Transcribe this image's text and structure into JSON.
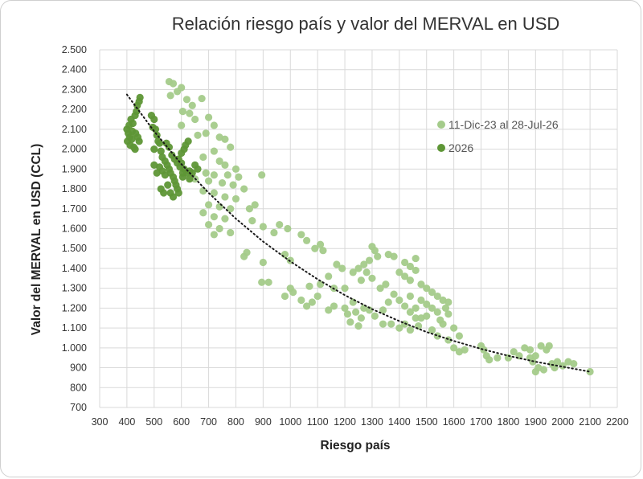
{
  "chart_data": {
    "type": "scatter",
    "title": "Relación riesgo país y valor del MERVAL en USD",
    "xlabel": "Riesgo país",
    "ylabel": "Valor del MERVAL en USD (CCL)",
    "xlim": [
      300,
      2200
    ],
    "ylim": [
      700,
      2500
    ],
    "x_ticks": [
      300,
      400,
      500,
      600,
      700,
      800,
      900,
      1000,
      1100,
      1200,
      1300,
      1400,
      1500,
      1600,
      1700,
      1800,
      1900,
      2000,
      2100,
      2200
    ],
    "y_ticks": [
      700,
      800,
      900,
      1000,
      1100,
      1200,
      1300,
      1400,
      1500,
      1600,
      1700,
      1800,
      1900,
      2000,
      2100,
      2200,
      2300,
      2400,
      2500
    ],
    "x_tick_labels": [
      "300",
      "400",
      "500",
      "600",
      "700",
      "800",
      "900",
      "1000",
      "1100",
      "1200",
      "1300",
      "1400",
      "1500",
      "1600",
      "1700",
      "1800",
      "1900",
      "2000",
      "2100",
      "2200"
    ],
    "y_tick_labels": [
      "700",
      "800",
      "900",
      "1.000",
      "1.100",
      "1.200",
      "1.300",
      "1.400",
      "1.500",
      "1.600",
      "1.700",
      "1.800",
      "1.900",
      "2.000",
      "2.100",
      "2.200",
      "2.300",
      "2.400",
      "2.500"
    ],
    "grid": "both",
    "legend_position": "top-right",
    "trendline": {
      "style": "dotted",
      "color": "#1a1a1a",
      "points": [
        [
          400,
          2275
        ],
        [
          500,
          2090
        ],
        [
          600,
          1925
        ],
        [
          700,
          1780
        ],
        [
          800,
          1650
        ],
        [
          900,
          1535
        ],
        [
          1000,
          1435
        ],
        [
          1100,
          1345
        ],
        [
          1200,
          1265
        ],
        [
          1300,
          1195
        ],
        [
          1400,
          1135
        ],
        [
          1500,
          1080
        ],
        [
          1600,
          1035
        ],
        [
          1700,
          995
        ],
        [
          1800,
          960
        ],
        [
          1900,
          930
        ],
        [
          2000,
          905
        ],
        [
          2100,
          880
        ]
      ]
    },
    "series": [
      {
        "name": "11-Dic-23 al 28-Jul-26",
        "color": "#a4cb8a",
        "points": [
          [
            555,
            2340
          ],
          [
            570,
            2330
          ],
          [
            585,
            2290
          ],
          [
            600,
            2310
          ],
          [
            560,
            2270
          ],
          [
            620,
            2250
          ],
          [
            640,
            2220
          ],
          [
            675,
            2255
          ],
          [
            605,
            2190
          ],
          [
            630,
            2180
          ],
          [
            650,
            2150
          ],
          [
            700,
            2160
          ],
          [
            720,
            2120
          ],
          [
            600,
            2120
          ],
          [
            660,
            2070
          ],
          [
            690,
            2080
          ],
          [
            740,
            2060
          ],
          [
            760,
            2050
          ],
          [
            780,
            2010
          ],
          [
            720,
            1990
          ],
          [
            680,
            1960
          ],
          [
            740,
            1940
          ],
          [
            760,
            1920
          ],
          [
            800,
            1900
          ],
          [
            690,
            1880
          ],
          [
            720,
            1870
          ],
          [
            770,
            1870
          ],
          [
            810,
            1860
          ],
          [
            650,
            1850
          ],
          [
            700,
            1840
          ],
          [
            750,
            1830
          ],
          [
            790,
            1820
          ],
          [
            830,
            1800
          ],
          [
            680,
            1790
          ],
          [
            720,
            1780
          ],
          [
            760,
            1760
          ],
          [
            800,
            1750
          ],
          [
            700,
            1720
          ],
          [
            740,
            1710
          ],
          [
            780,
            1700
          ],
          [
            850,
            1700
          ],
          [
            680,
            1680
          ],
          [
            720,
            1660
          ],
          [
            760,
            1650
          ],
          [
            700,
            1620
          ],
          [
            740,
            1600
          ],
          [
            780,
            1580
          ],
          [
            720,
            1570
          ],
          [
            870,
            1720
          ],
          [
            895,
            1870
          ],
          [
            860,
            1640
          ],
          [
            900,
            1610
          ],
          [
            960,
            1620
          ],
          [
            990,
            1600
          ],
          [
            940,
            1580
          ],
          [
            1040,
            1570
          ],
          [
            1060,
            1540
          ],
          [
            1110,
            1520
          ],
          [
            1120,
            1490
          ],
          [
            1090,
            1500
          ],
          [
            840,
            1480
          ],
          [
            830,
            1460
          ],
          [
            900,
            1430
          ],
          [
            980,
            1470
          ],
          [
            1000,
            1440
          ],
          [
            920,
            1330
          ],
          [
            895,
            1330
          ],
          [
            1000,
            1300
          ],
          [
            1010,
            1280
          ],
          [
            1040,
            1240
          ],
          [
            1080,
            1230
          ],
          [
            1100,
            1260
          ],
          [
            1110,
            1320
          ],
          [
            1070,
            1310
          ],
          [
            980,
            1260
          ],
          [
            1060,
            1210
          ],
          [
            1140,
            1190
          ],
          [
            1160,
            1210
          ],
          [
            1200,
            1200
          ],
          [
            1210,
            1170
          ],
          [
            1230,
            1230
          ],
          [
            1240,
            1180
          ],
          [
            1260,
            1150
          ],
          [
            1220,
            1130
          ],
          [
            1250,
            1110
          ],
          [
            1270,
            1200
          ],
          [
            1290,
            1190
          ],
          [
            1310,
            1160
          ],
          [
            1340,
            1190
          ],
          [
            1360,
            1230
          ],
          [
            1380,
            1270
          ],
          [
            1400,
            1240
          ],
          [
            1420,
            1210
          ],
          [
            1440,
            1180
          ],
          [
            1460,
            1150
          ],
          [
            1420,
            1120
          ],
          [
            1400,
            1100
          ],
          [
            1440,
            1090
          ],
          [
            1470,
            1110
          ],
          [
            1480,
            1150
          ],
          [
            1500,
            1160
          ],
          [
            1520,
            1200
          ],
          [
            1540,
            1180
          ],
          [
            1550,
            1140
          ],
          [
            1560,
            1120
          ],
          [
            1580,
            1170
          ],
          [
            1500,
            1220
          ],
          [
            1480,
            1240
          ],
          [
            1460,
            1200
          ],
          [
            1440,
            1260
          ],
          [
            1300,
            1510
          ],
          [
            1310,
            1490
          ],
          [
            1320,
            1460
          ],
          [
            1290,
            1440
          ],
          [
            1270,
            1420
          ],
          [
            1250,
            1400
          ],
          [
            1230,
            1380
          ],
          [
            1280,
            1380
          ],
          [
            1300,
            1350
          ],
          [
            1260,
            1340
          ],
          [
            1360,
            1470
          ],
          [
            1380,
            1460
          ],
          [
            1420,
            1430
          ],
          [
            1440,
            1410
          ],
          [
            1460,
            1390
          ],
          [
            1400,
            1380
          ],
          [
            1420,
            1360
          ],
          [
            1440,
            1340
          ],
          [
            1480,
            1320
          ],
          [
            1500,
            1300
          ],
          [
            1520,
            1280
          ],
          [
            1540,
            1260
          ],
          [
            1560,
            1240
          ],
          [
            1580,
            1230
          ],
          [
            1570,
            1200
          ],
          [
            1600,
            1100
          ],
          [
            1620,
            1060
          ],
          [
            1580,
            1040
          ],
          [
            1600,
            1000
          ],
          [
            1620,
            980
          ],
          [
            1640,
            990
          ],
          [
            1700,
            1010
          ],
          [
            1710,
            990
          ],
          [
            1720,
            960
          ],
          [
            1730,
            940
          ],
          [
            1760,
            950
          ],
          [
            1800,
            950
          ],
          [
            1820,
            980
          ],
          [
            1840,
            960
          ],
          [
            1860,
            1000
          ],
          [
            1880,
            990
          ],
          [
            1900,
            960
          ],
          [
            1920,
            1010
          ],
          [
            1940,
            990
          ],
          [
            1950,
            1010
          ],
          [
            1890,
            930
          ],
          [
            1910,
            900
          ],
          [
            1930,
            890
          ],
          [
            1960,
            920
          ],
          [
            1980,
            930
          ],
          [
            2000,
            910
          ],
          [
            2020,
            930
          ],
          [
            2040,
            920
          ],
          [
            1880,
            950
          ],
          [
            1900,
            880
          ],
          [
            1970,
            900
          ],
          [
            2100,
            880
          ],
          [
            1170,
            1420
          ],
          [
            1190,
            1400
          ],
          [
            1140,
            1360
          ],
          [
            1200,
            1300
          ],
          [
            1160,
            1300
          ],
          [
            1340,
            1120
          ],
          [
            1370,
            1120
          ],
          [
            1330,
            1300
          ],
          [
            1350,
            1320
          ],
          [
            1460,
            1450
          ],
          [
            1520,
            1090
          ],
          [
            1540,
            1060
          ]
        ]
      },
      {
        "name": "2026",
        "color": "#5e9636",
        "points": [
          [
            400,
            2100
          ],
          [
            405,
            2080
          ],
          [
            410,
            2060
          ],
          [
            402,
            2040
          ],
          [
            412,
            2020
          ],
          [
            418,
            2050
          ],
          [
            420,
            2090
          ],
          [
            425,
            2010
          ],
          [
            430,
            2000
          ],
          [
            415,
            2150
          ],
          [
            408,
            2120
          ],
          [
            422,
            2130
          ],
          [
            432,
            2080
          ],
          [
            440,
            2060
          ],
          [
            445,
            2040
          ],
          [
            435,
            2190
          ],
          [
            438,
            2220
          ],
          [
            445,
            2240
          ],
          [
            448,
            2260
          ],
          [
            430,
            2170
          ],
          [
            490,
            2170
          ],
          [
            500,
            2150
          ],
          [
            505,
            2100
          ],
          [
            495,
            2110
          ],
          [
            510,
            2070
          ],
          [
            515,
            2040
          ],
          [
            520,
            2030
          ],
          [
            500,
            2000
          ],
          [
            525,
            1990
          ],
          [
            530,
            1960
          ],
          [
            540,
            1940
          ],
          [
            548,
            1920
          ],
          [
            555,
            1900
          ],
          [
            560,
            1880
          ],
          [
            570,
            1860
          ],
          [
            575,
            1840
          ],
          [
            580,
            1820
          ],
          [
            585,
            1800
          ],
          [
            560,
            1780
          ],
          [
            570,
            1760
          ],
          [
            590,
            1950
          ],
          [
            600,
            1930
          ],
          [
            610,
            1900
          ],
          [
            620,
            1880
          ],
          [
            630,
            1890
          ],
          [
            600,
            1980
          ],
          [
            610,
            2000
          ],
          [
            615,
            2020
          ],
          [
            625,
            2040
          ],
          [
            520,
            1910
          ],
          [
            530,
            1890
          ],
          [
            540,
            1870
          ],
          [
            500,
            1920
          ],
          [
            510,
            1880
          ],
          [
            550,
            1820
          ],
          [
            535,
            1780
          ],
          [
            525,
            1800
          ],
          [
            545,
            2030
          ],
          [
            555,
            2010
          ],
          [
            565,
            1970
          ],
          [
            575,
            1950
          ],
          [
            585,
            1930
          ],
          [
            595,
            1910
          ],
          [
            605,
            1880
          ],
          [
            640,
            1880
          ],
          [
            650,
            1920
          ],
          [
            660,
            1900
          ],
          [
            630,
            1850
          ],
          [
            605,
            1860
          ],
          [
            590,
            1780
          ]
        ]
      }
    ]
  }
}
